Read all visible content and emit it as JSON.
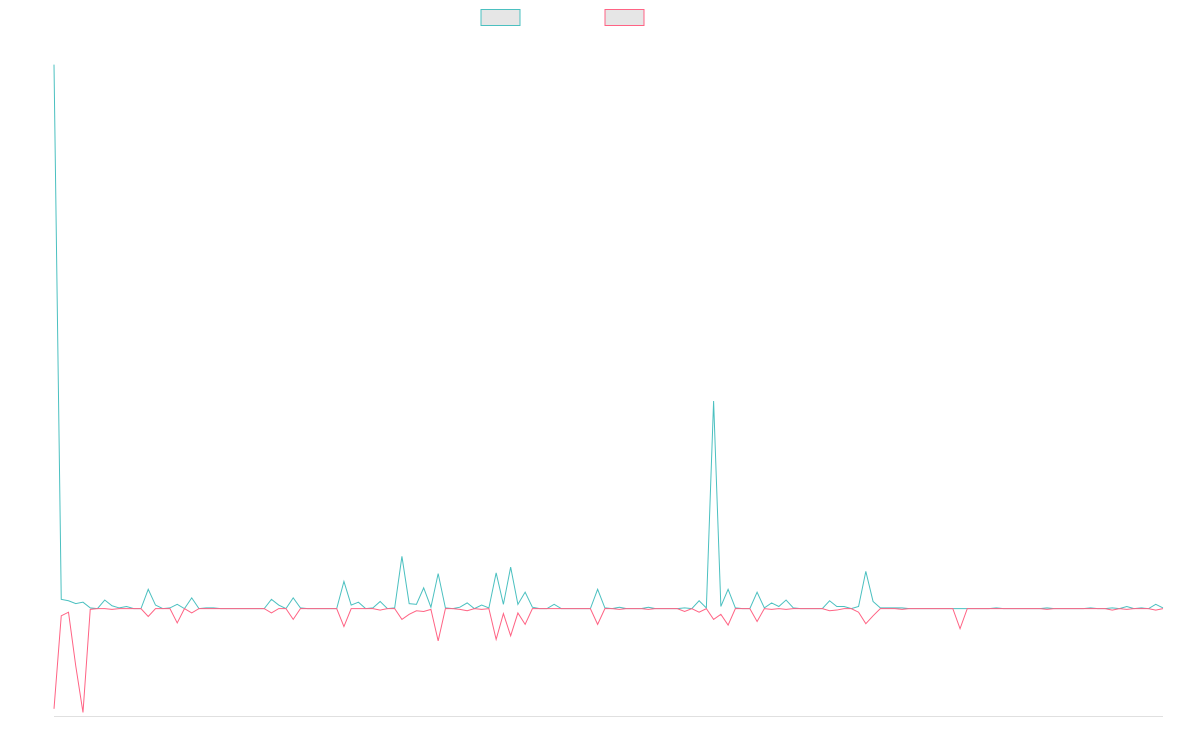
{
  "chart_data": {
    "type": "line",
    "title": "",
    "xlabel": "",
    "ylabel": "",
    "ylim": [
      -15,
      80
    ],
    "grid": false,
    "legend_placement": "top-center",
    "colors": {
      "series_a": "#4bc0c0",
      "series_b": "#ff6384",
      "legend_fill": "#e6e6e6",
      "baseline": "#e0e0e0"
    },
    "series": [
      {
        "name": "",
        "color": "#4bc0c0",
        "points": [
          [
            0,
            76
          ],
          [
            1,
            1.3
          ],
          [
            2,
            1.1
          ],
          [
            3,
            0.7
          ],
          [
            4,
            0.9
          ],
          [
            5,
            0.1
          ],
          [
            7,
            1.2
          ],
          [
            8,
            0.4
          ],
          [
            9,
            0.1
          ],
          [
            10,
            0.3
          ],
          [
            13,
            2.7
          ],
          [
            14,
            0.5
          ],
          [
            16,
            0.1
          ],
          [
            17,
            0.6
          ],
          [
            19,
            1.5
          ],
          [
            21,
            0.1
          ],
          [
            22,
            0.1
          ],
          [
            30,
            1.3
          ],
          [
            31,
            0.5
          ],
          [
            33,
            1.5
          ],
          [
            34,
            0.1
          ],
          [
            40,
            3.8
          ],
          [
            41,
            0.5
          ],
          [
            42,
            0.9
          ],
          [
            44,
            0.1
          ],
          [
            45,
            1.0
          ],
          [
            47,
            0.1
          ],
          [
            48,
            7.3
          ],
          [
            49,
            0.7
          ],
          [
            50,
            0.6
          ],
          [
            51,
            2.9
          ],
          [
            52,
            0.2
          ],
          [
            53,
            4.9
          ],
          [
            54,
            0.1
          ],
          [
            56,
            0.2
          ],
          [
            57,
            0.8
          ],
          [
            59,
            0.5
          ],
          [
            60,
            0.1
          ],
          [
            61,
            5.0
          ],
          [
            62,
            0.6
          ],
          [
            63,
            5.8
          ],
          [
            64,
            0.6
          ],
          [
            65,
            2.3
          ],
          [
            66,
            0.2
          ],
          [
            69,
            0.6
          ],
          [
            75,
            2.7
          ],
          [
            76,
            0.1
          ],
          [
            78,
            0.2
          ],
          [
            82,
            0.2
          ],
          [
            87,
            0.1
          ],
          [
            89,
            1.1
          ],
          [
            90,
            0.1
          ],
          [
            91,
            29
          ],
          [
            92,
            0.3
          ],
          [
            93,
            2.7
          ],
          [
            94,
            0.1
          ],
          [
            97,
            2.3
          ],
          [
            98,
            0.1
          ],
          [
            99,
            0.8
          ],
          [
            100,
            0.3
          ],
          [
            101,
            1.2
          ],
          [
            102,
            0.1
          ],
          [
            107,
            1.1
          ],
          [
            108,
            0.3
          ],
          [
            109,
            0.3
          ],
          [
            111,
            0.3
          ],
          [
            112,
            5.2
          ],
          [
            113,
            1.0
          ],
          [
            114,
            0.1
          ],
          [
            115,
            0.1
          ],
          [
            116,
            0.1
          ],
          [
            117,
            0.1
          ],
          [
            130,
            0.1
          ],
          [
            137,
            0.1
          ],
          [
            143,
            0.1
          ],
          [
            146,
            0.1
          ],
          [
            148,
            0.3
          ],
          [
            150,
            0.1
          ],
          [
            152,
            0.6
          ],
          [
            153,
            0.1
          ]
        ]
      },
      {
        "name": "",
        "color": "#ff6384",
        "points": [
          [
            0,
            -14
          ],
          [
            1,
            -1.0
          ],
          [
            2,
            -0.5
          ],
          [
            3,
            -8.0
          ],
          [
            4,
            -14.5
          ],
          [
            5,
            -0.1
          ],
          [
            8,
            -0.1
          ],
          [
            9,
            0
          ],
          [
            10,
            0
          ],
          [
            13,
            -1.1
          ],
          [
            14,
            0
          ],
          [
            17,
            -2.0
          ],
          [
            18,
            0
          ],
          [
            19,
            -0.6
          ],
          [
            20,
            0
          ],
          [
            30,
            -0.6
          ],
          [
            31,
            0
          ],
          [
            33,
            -1.5
          ],
          [
            34,
            0
          ],
          [
            40,
            -2.5
          ],
          [
            41,
            0
          ],
          [
            42,
            0
          ],
          [
            44,
            0
          ],
          [
            45,
            -0.2
          ],
          [
            46,
            0
          ],
          [
            48,
            -1.5
          ],
          [
            49,
            -0.8
          ],
          [
            50,
            -0.3
          ],
          [
            51,
            -0.4
          ],
          [
            52,
            -0.1
          ],
          [
            53,
            -4.5
          ],
          [
            54,
            0
          ],
          [
            56,
            -0.1
          ],
          [
            57,
            -0.3
          ],
          [
            59,
            -0.1
          ],
          [
            60,
            0
          ],
          [
            61,
            -4.3
          ],
          [
            62,
            -0.7
          ],
          [
            63,
            -3.8
          ],
          [
            64,
            -0.6
          ],
          [
            65,
            -2.2
          ],
          [
            66,
            0
          ],
          [
            75,
            -2.2
          ],
          [
            76,
            0
          ],
          [
            78,
            -0.1
          ],
          [
            82,
            -0.1
          ],
          [
            87,
            -0.4
          ],
          [
            88,
            0
          ],
          [
            89,
            -0.5
          ],
          [
            90,
            0
          ],
          [
            91,
            -1.5
          ],
          [
            92,
            -0.8
          ],
          [
            93,
            -2.3
          ],
          [
            94,
            0
          ],
          [
            97,
            -1.8
          ],
          [
            98,
            0
          ],
          [
            99,
            -0.1
          ],
          [
            100,
            0
          ],
          [
            101,
            -0.1
          ],
          [
            102,
            0
          ],
          [
            107,
            -0.3
          ],
          [
            108,
            -0.2
          ],
          [
            109,
            0
          ],
          [
            111,
            -0.5
          ],
          [
            112,
            -2.1
          ],
          [
            113,
            -1.0
          ],
          [
            114,
            0
          ],
          [
            115,
            0
          ],
          [
            116,
            0
          ],
          [
            117,
            -0.1
          ],
          [
            118,
            0
          ],
          [
            124,
            0
          ],
          [
            125,
            -2.8
          ],
          [
            126,
            0
          ],
          [
            137,
            -0.1
          ],
          [
            138,
            0
          ],
          [
            146,
            -0.2
          ],
          [
            147,
            0
          ],
          [
            148,
            -0.1
          ],
          [
            149,
            0
          ],
          [
            152,
            -0.2
          ],
          [
            153,
            0
          ]
        ]
      }
    ]
  }
}
